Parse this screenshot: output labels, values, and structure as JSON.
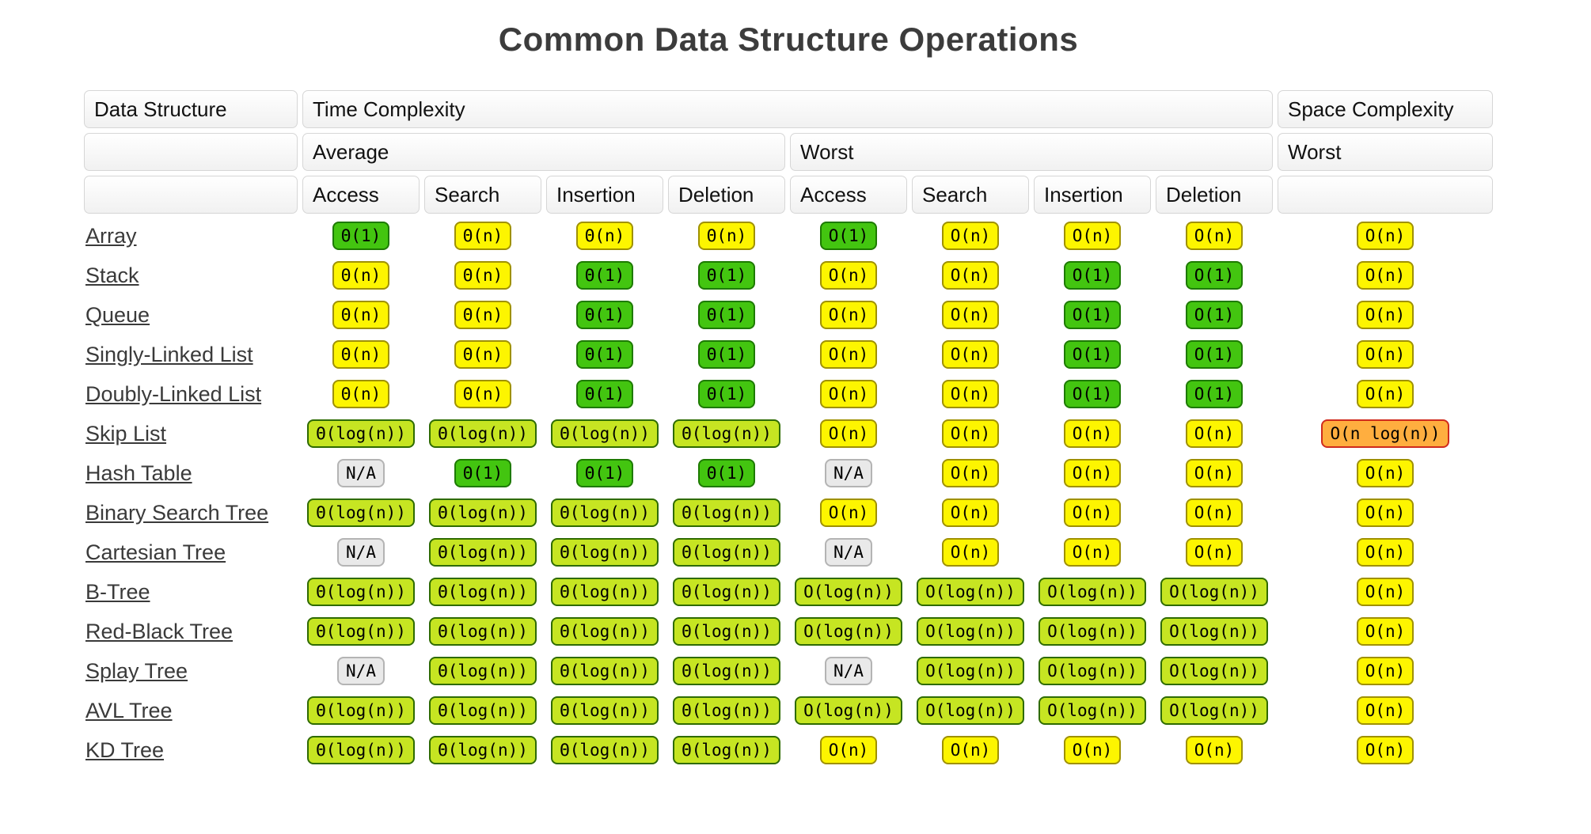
{
  "title": "Common Data Structure Operations",
  "colors": {
    "excellent": {
      "bg": "#43c510",
      "border": "#1d7a00"
    },
    "good": {
      "bg": "#c6e522",
      "border": "#2e6b00"
    },
    "fair": {
      "bg": "#fdf500",
      "border": "#9f9100"
    },
    "bad": {
      "bg": "#ffae3f",
      "border": "#d02b1d"
    },
    "na": {
      "bg": "#e9e9e9",
      "border": "#b4b4b4"
    }
  },
  "badge_levels": {
    "Θ(1)": "excellent",
    "O(1)": "excellent",
    "Θ(log(n))": "good",
    "O(log(n))": "good",
    "Θ(n)": "fair",
    "O(n)": "fair",
    "O(n log(n))": "bad",
    "N/A": "na"
  },
  "table": {
    "header": {
      "data_structure": "Data Structure",
      "time_complexity": "Time Complexity",
      "space_complexity": "Space Complexity",
      "average": "Average",
      "worst": "Worst",
      "space_worst": "Worst",
      "operations": [
        "Access",
        "Search",
        "Insertion",
        "Deletion",
        "Access",
        "Search",
        "Insertion",
        "Deletion"
      ]
    },
    "rows": [
      {
        "name": "Array",
        "avg": [
          "Θ(1)",
          "Θ(n)",
          "Θ(n)",
          "Θ(n)"
        ],
        "worst": [
          "O(1)",
          "O(n)",
          "O(n)",
          "O(n)"
        ],
        "space": "O(n)"
      },
      {
        "name": "Stack",
        "avg": [
          "Θ(n)",
          "Θ(n)",
          "Θ(1)",
          "Θ(1)"
        ],
        "worst": [
          "O(n)",
          "O(n)",
          "O(1)",
          "O(1)"
        ],
        "space": "O(n)"
      },
      {
        "name": "Queue",
        "avg": [
          "Θ(n)",
          "Θ(n)",
          "Θ(1)",
          "Θ(1)"
        ],
        "worst": [
          "O(n)",
          "O(n)",
          "O(1)",
          "O(1)"
        ],
        "space": "O(n)"
      },
      {
        "name": "Singly-Linked List",
        "avg": [
          "Θ(n)",
          "Θ(n)",
          "Θ(1)",
          "Θ(1)"
        ],
        "worst": [
          "O(n)",
          "O(n)",
          "O(1)",
          "O(1)"
        ],
        "space": "O(n)"
      },
      {
        "name": "Doubly-Linked List",
        "avg": [
          "Θ(n)",
          "Θ(n)",
          "Θ(1)",
          "Θ(1)"
        ],
        "worst": [
          "O(n)",
          "O(n)",
          "O(1)",
          "O(1)"
        ],
        "space": "O(n)"
      },
      {
        "name": "Skip List",
        "avg": [
          "Θ(log(n))",
          "Θ(log(n))",
          "Θ(log(n))",
          "Θ(log(n))"
        ],
        "worst": [
          "O(n)",
          "O(n)",
          "O(n)",
          "O(n)"
        ],
        "space": "O(n log(n))"
      },
      {
        "name": "Hash Table",
        "avg": [
          "N/A",
          "Θ(1)",
          "Θ(1)",
          "Θ(1)"
        ],
        "worst": [
          "N/A",
          "O(n)",
          "O(n)",
          "O(n)"
        ],
        "space": "O(n)"
      },
      {
        "name": "Binary Search Tree",
        "avg": [
          "Θ(log(n))",
          "Θ(log(n))",
          "Θ(log(n))",
          "Θ(log(n))"
        ],
        "worst": [
          "O(n)",
          "O(n)",
          "O(n)",
          "O(n)"
        ],
        "space": "O(n)"
      },
      {
        "name": "Cartesian Tree",
        "avg": [
          "N/A",
          "Θ(log(n))",
          "Θ(log(n))",
          "Θ(log(n))"
        ],
        "worst": [
          "N/A",
          "O(n)",
          "O(n)",
          "O(n)"
        ],
        "space": "O(n)"
      },
      {
        "name": "B-Tree",
        "avg": [
          "Θ(log(n))",
          "Θ(log(n))",
          "Θ(log(n))",
          "Θ(log(n))"
        ],
        "worst": [
          "O(log(n))",
          "O(log(n))",
          "O(log(n))",
          "O(log(n))"
        ],
        "space": "O(n)"
      },
      {
        "name": "Red-Black Tree",
        "avg": [
          "Θ(log(n))",
          "Θ(log(n))",
          "Θ(log(n))",
          "Θ(log(n))"
        ],
        "worst": [
          "O(log(n))",
          "O(log(n))",
          "O(log(n))",
          "O(log(n))"
        ],
        "space": "O(n)"
      },
      {
        "name": "Splay Tree",
        "avg": [
          "N/A",
          "Θ(log(n))",
          "Θ(log(n))",
          "Θ(log(n))"
        ],
        "worst": [
          "N/A",
          "O(log(n))",
          "O(log(n))",
          "O(log(n))"
        ],
        "space": "O(n)"
      },
      {
        "name": "AVL Tree",
        "avg": [
          "Θ(log(n))",
          "Θ(log(n))",
          "Θ(log(n))",
          "Θ(log(n))"
        ],
        "worst": [
          "O(log(n))",
          "O(log(n))",
          "O(log(n))",
          "O(log(n))"
        ],
        "space": "O(n)"
      },
      {
        "name": "KD Tree",
        "avg": [
          "Θ(log(n))",
          "Θ(log(n))",
          "Θ(log(n))",
          "Θ(log(n))"
        ],
        "worst": [
          "O(n)",
          "O(n)",
          "O(n)",
          "O(n)"
        ],
        "space": "O(n)"
      }
    ]
  }
}
